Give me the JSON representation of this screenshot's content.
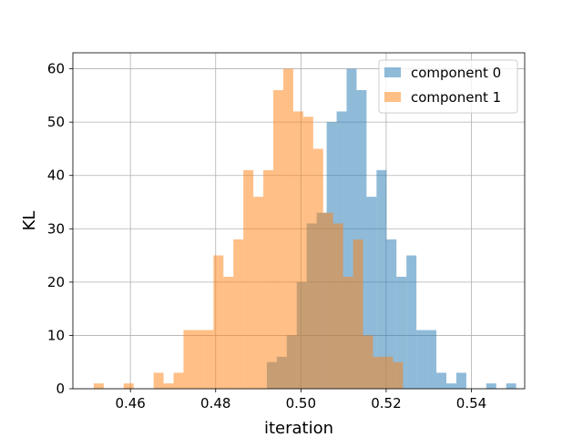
{
  "chart_data": {
    "type": "histogram",
    "title": "",
    "xlabel": "iteration",
    "ylabel": "KL",
    "xlim": [
      0.4465,
      0.5525
    ],
    "ylim": [
      0,
      63
    ],
    "grid": true,
    "legend_position": "upper-right",
    "x_ticks": [
      0.46,
      0.48,
      0.5,
      0.52,
      0.54
    ],
    "x_tick_labels": [
      "0.46",
      "0.48",
      "0.50",
      "0.52",
      "0.54"
    ],
    "y_ticks": [
      0,
      10,
      20,
      30,
      40,
      50,
      60
    ],
    "y_tick_labels": [
      "0",
      "10",
      "20",
      "30",
      "40",
      "50",
      "60"
    ],
    "series": [
      {
        "name": "component 0",
        "color": "#1f77b4",
        "alpha": 0.5,
        "bin_start": 0.492,
        "bin_width": 0.00234,
        "counts": [
          5,
          6,
          10,
          20,
          31,
          33,
          50,
          52,
          60,
          56,
          36,
          41,
          28,
          21,
          25,
          11,
          11,
          3,
          1,
          3,
          0,
          0,
          1,
          0,
          1
        ]
      },
      {
        "name": "component 1",
        "color": "#ff7f0e",
        "alpha": 0.5,
        "bin_start": 0.4514,
        "bin_width": 0.00234,
        "counts": [
          1,
          0,
          0,
          1,
          0,
          0,
          3,
          1,
          3,
          11,
          11,
          11,
          25,
          21,
          28,
          41,
          36,
          41,
          56,
          60,
          52,
          51,
          45,
          33,
          31,
          21,
          28,
          10,
          6,
          6,
          5
        ]
      }
    ]
  }
}
